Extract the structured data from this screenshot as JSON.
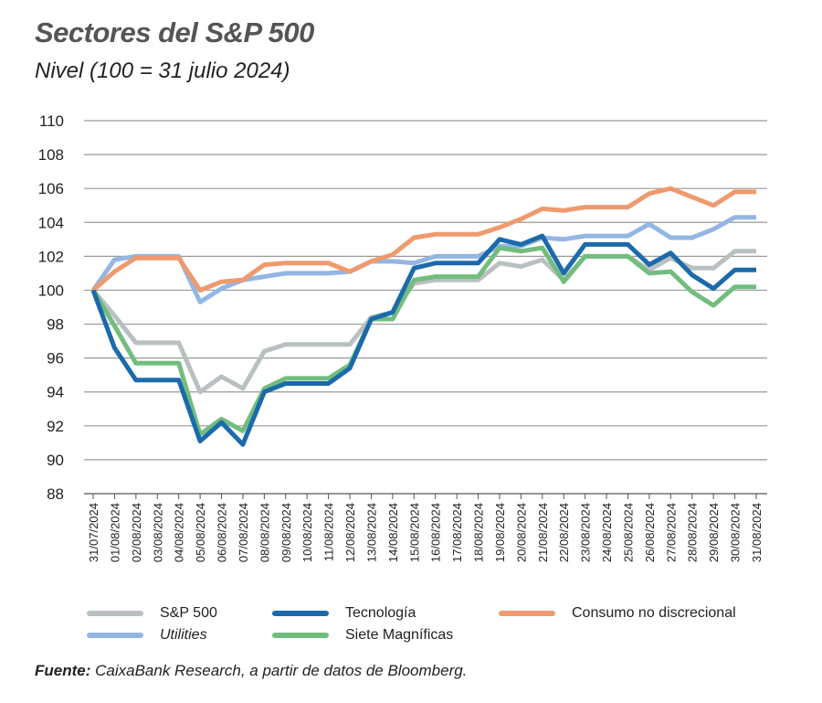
{
  "title": "Sectores del S&P 500",
  "subtitle": "Nivel (100 = 31 julio 2024)",
  "source_label": "Fuente:",
  "source_text": "CaixaBank Research, a partir de datos de Bloomberg.",
  "chart_data": {
    "type": "line",
    "ylim": [
      88,
      110
    ],
    "yticks": [
      88,
      90,
      92,
      94,
      96,
      98,
      100,
      102,
      104,
      106,
      108,
      110
    ],
    "grid": true,
    "legend_position": "bottom",
    "x": [
      "31/07/2024",
      "01/08/2024",
      "02/08/2024",
      "03/08/2024",
      "04/08/2024",
      "05/08/2024",
      "06/08/2024",
      "07/08/2024",
      "08/08/2024",
      "09/08/2024",
      "10/08/2024",
      "11/08/2024",
      "12/08/2024",
      "13/08/2024",
      "14/08/2024",
      "15/08/2024",
      "16/08/2024",
      "17/08/2024",
      "18/08/2024",
      "19/08/2024",
      "20/08/2024",
      "21/08/2024",
      "22/08/2024",
      "23/08/2024",
      "24/08/2024",
      "25/08/2024",
      "26/08/2024",
      "27/08/2024",
      "28/08/2024",
      "29/08/2024",
      "30/08/2024",
      "31/08/2024"
    ],
    "series": [
      {
        "name": "S&P 500",
        "color": "#b9c0c2",
        "values": [
          100,
          98.5,
          96.9,
          96.9,
          96.9,
          94.0,
          94.9,
          94.2,
          96.4,
          96.8,
          96.8,
          96.8,
          96.8,
          98.4,
          98.7,
          100.4,
          100.6,
          100.6,
          100.6,
          101.6,
          101.4,
          101.8,
          100.6,
          102.0,
          102.0,
          102.0,
          101.2,
          101.9,
          101.3,
          101.3,
          102.3,
          102.3
        ]
      },
      {
        "name": "Utilities",
        "italic": true,
        "color": "#93b6e3",
        "values": [
          100,
          101.8,
          102.0,
          102.0,
          102.0,
          99.3,
          100.1,
          100.6,
          100.8,
          101.0,
          101.0,
          101.0,
          101.1,
          101.7,
          101.7,
          101.6,
          102.0,
          102.0,
          102.0,
          102.6,
          102.6,
          103.1,
          103.0,
          103.2,
          103.2,
          103.2,
          103.9,
          103.1,
          103.1,
          103.6,
          104.3,
          104.3
        ]
      },
      {
        "name": "Consumo no discrecional",
        "color": "#ef9a6e",
        "values": [
          100,
          101.1,
          101.9,
          101.9,
          101.9,
          100.0,
          100.5,
          100.6,
          101.5,
          101.6,
          101.6,
          101.6,
          101.1,
          101.7,
          102.1,
          103.1,
          103.3,
          103.3,
          103.3,
          103.7,
          104.2,
          104.8,
          104.7,
          104.9,
          104.9,
          104.9,
          105.7,
          106.0,
          105.5,
          105.0,
          105.8,
          105.8
        ]
      },
      {
        "name": "Siete Magníficas",
        "color": "#72bd7e",
        "values": [
          100,
          97.9,
          95.7,
          95.7,
          95.7,
          91.5,
          92.4,
          91.7,
          94.2,
          94.8,
          94.8,
          94.8,
          95.6,
          98.3,
          98.3,
          100.6,
          100.8,
          100.8,
          100.8,
          102.5,
          102.3,
          102.5,
          100.5,
          102.0,
          102.0,
          102.0,
          101.0,
          101.1,
          99.9,
          99.1,
          100.2,
          100.2
        ]
      },
      {
        "name": "Tecnología",
        "color": "#1b6aab",
        "values": [
          100,
          96.6,
          94.7,
          94.7,
          94.7,
          91.1,
          92.2,
          90.9,
          94.0,
          94.5,
          94.5,
          94.5,
          95.4,
          98.3,
          98.7,
          101.3,
          101.6,
          101.6,
          101.6,
          103.0,
          102.7,
          103.2,
          101.0,
          102.7,
          102.7,
          102.7,
          101.5,
          102.2,
          100.9,
          100.1,
          101.2,
          101.2
        ]
      }
    ]
  }
}
